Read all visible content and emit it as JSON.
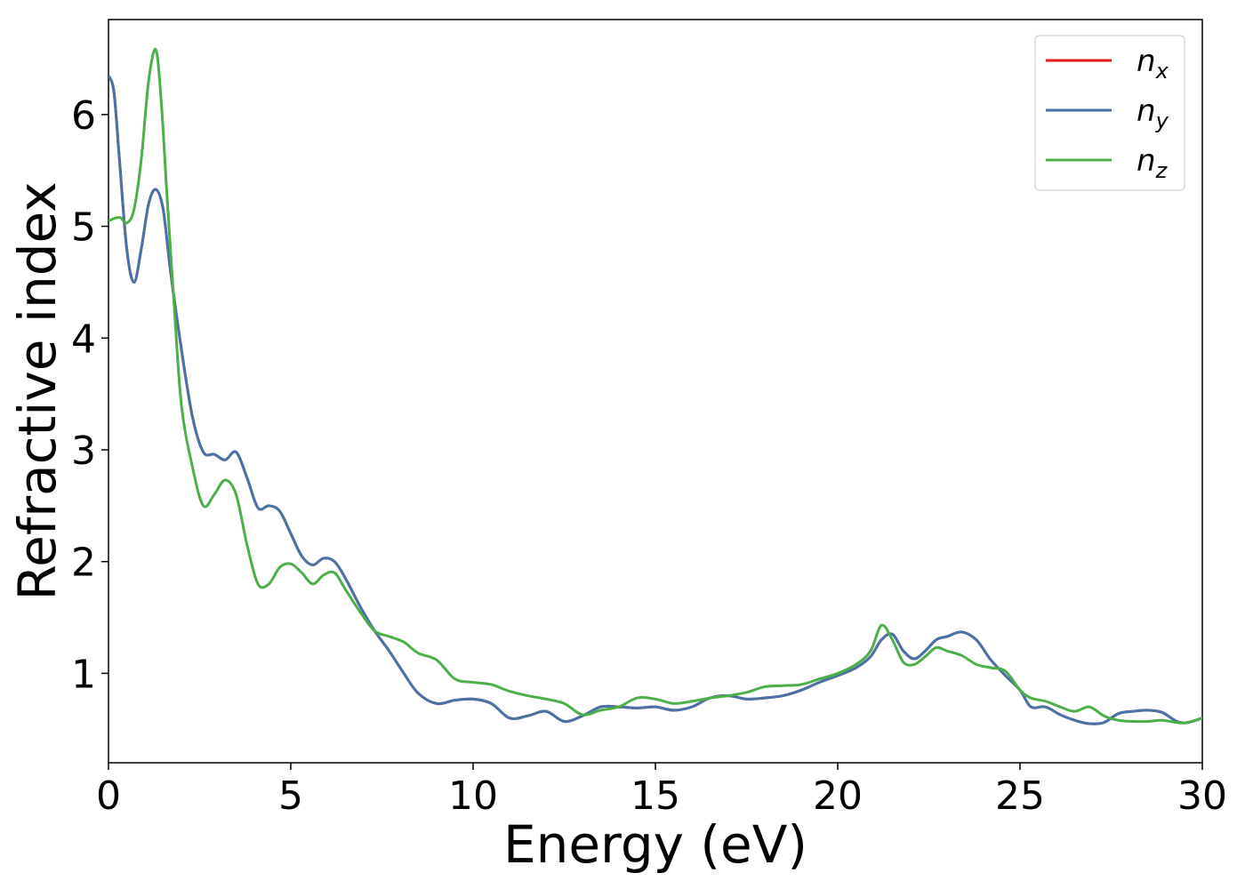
{
  "chart_data": {
    "type": "line",
    "title": "",
    "xlabel": "Energy (eV)",
    "ylabel": "Refractive index",
    "xlim": [
      0,
      30
    ],
    "ylim": [
      0.2,
      6.85
    ],
    "xticks": [
      0,
      5,
      10,
      15,
      20,
      25,
      30
    ],
    "yticks": [
      1,
      2,
      3,
      4,
      5,
      6
    ],
    "grid": false,
    "legend_position": "top-right",
    "series": [
      {
        "name": "n",
        "subscript": "x",
        "color": "#e41a1c",
        "x": [
          0,
          0.15,
          0.3,
          0.5,
          0.7,
          0.9,
          1.1,
          1.3,
          1.5,
          1.7,
          2.0,
          2.3,
          2.6,
          2.9,
          3.2,
          3.5,
          3.8,
          4.1,
          4.4,
          4.7,
          5.0,
          5.3,
          5.6,
          5.9,
          6.2,
          6.5,
          6.9,
          7.3,
          7.7,
          8.1,
          8.5,
          9.0,
          9.5,
          10.0,
          10.5,
          11.0,
          11.5,
          12.0,
          12.5,
          13.0,
          13.5,
          14.0,
          14.5,
          15.0,
          15.5,
          16.0,
          16.5,
          17.0,
          17.5,
          18.0,
          18.5,
          19.0,
          19.5,
          20.0,
          20.5,
          20.9,
          21.2,
          21.5,
          21.8,
          22.1,
          22.4,
          22.7,
          23.0,
          23.4,
          23.8,
          24.2,
          24.6,
          25.0,
          25.3,
          25.7,
          26.1,
          26.5,
          26.9,
          27.3,
          27.7,
          28.1,
          28.5,
          28.9,
          29.3,
          29.6,
          30.0
        ],
        "y": [
          6.35,
          6.2,
          5.6,
          4.8,
          4.5,
          4.8,
          5.2,
          5.33,
          5.15,
          4.6,
          3.9,
          3.3,
          2.98,
          2.96,
          2.91,
          2.98,
          2.75,
          2.48,
          2.5,
          2.45,
          2.25,
          2.05,
          1.97,
          2.03,
          2.0,
          1.85,
          1.6,
          1.38,
          1.2,
          1.0,
          0.82,
          0.73,
          0.76,
          0.77,
          0.73,
          0.6,
          0.62,
          0.66,
          0.57,
          0.62,
          0.7,
          0.7,
          0.69,
          0.7,
          0.67,
          0.7,
          0.78,
          0.8,
          0.77,
          0.78,
          0.8,
          0.85,
          0.92,
          0.98,
          1.05,
          1.15,
          1.3,
          1.35,
          1.2,
          1.13,
          1.2,
          1.3,
          1.33,
          1.37,
          1.3,
          1.12,
          0.98,
          0.85,
          0.7,
          0.7,
          0.63,
          0.58,
          0.55,
          0.56,
          0.64,
          0.66,
          0.67,
          0.65,
          0.57,
          0.56,
          0.6
        ]
      },
      {
        "name": "n",
        "subscript": "y",
        "color": "#4674a6",
        "x": [
          0,
          0.15,
          0.3,
          0.5,
          0.7,
          0.9,
          1.1,
          1.3,
          1.5,
          1.7,
          2.0,
          2.3,
          2.6,
          2.9,
          3.2,
          3.5,
          3.8,
          4.1,
          4.4,
          4.7,
          5.0,
          5.3,
          5.6,
          5.9,
          6.2,
          6.5,
          6.9,
          7.3,
          7.7,
          8.1,
          8.5,
          9.0,
          9.5,
          10.0,
          10.5,
          11.0,
          11.5,
          12.0,
          12.5,
          13.0,
          13.5,
          14.0,
          14.5,
          15.0,
          15.5,
          16.0,
          16.5,
          17.0,
          17.5,
          18.0,
          18.5,
          19.0,
          19.5,
          20.0,
          20.5,
          20.9,
          21.2,
          21.5,
          21.8,
          22.1,
          22.4,
          22.7,
          23.0,
          23.4,
          23.8,
          24.2,
          24.6,
          25.0,
          25.3,
          25.7,
          26.1,
          26.5,
          26.9,
          27.3,
          27.7,
          28.1,
          28.5,
          28.9,
          29.3,
          29.6,
          30.0
        ],
        "y": [
          6.35,
          6.2,
          5.6,
          4.8,
          4.5,
          4.8,
          5.2,
          5.33,
          5.15,
          4.6,
          3.9,
          3.3,
          2.98,
          2.96,
          2.91,
          2.98,
          2.75,
          2.48,
          2.5,
          2.45,
          2.25,
          2.05,
          1.97,
          2.03,
          2.0,
          1.85,
          1.6,
          1.38,
          1.2,
          1.0,
          0.82,
          0.73,
          0.76,
          0.77,
          0.73,
          0.6,
          0.62,
          0.66,
          0.57,
          0.62,
          0.7,
          0.7,
          0.69,
          0.7,
          0.67,
          0.7,
          0.78,
          0.8,
          0.77,
          0.78,
          0.8,
          0.85,
          0.92,
          0.98,
          1.05,
          1.15,
          1.3,
          1.35,
          1.2,
          1.13,
          1.2,
          1.3,
          1.33,
          1.37,
          1.3,
          1.12,
          0.98,
          0.85,
          0.7,
          0.7,
          0.63,
          0.58,
          0.55,
          0.56,
          0.64,
          0.66,
          0.67,
          0.65,
          0.57,
          0.56,
          0.6
        ]
      },
      {
        "name": "n",
        "subscript": "z",
        "color": "#4daf4a",
        "x": [
          0,
          0.3,
          0.5,
          0.7,
          0.9,
          1.1,
          1.3,
          1.45,
          1.6,
          1.8,
          2.0,
          2.3,
          2.6,
          2.9,
          3.2,
          3.5,
          3.8,
          4.1,
          4.4,
          4.7,
          5.0,
          5.3,
          5.6,
          5.9,
          6.2,
          6.5,
          6.9,
          7.3,
          7.7,
          8.1,
          8.5,
          9.0,
          9.5,
          10.0,
          10.5,
          11.0,
          11.5,
          12.0,
          12.5,
          13.0,
          13.5,
          14.0,
          14.5,
          15.0,
          15.5,
          16.0,
          16.5,
          17.0,
          17.5,
          18.0,
          18.5,
          19.0,
          19.5,
          20.0,
          20.5,
          20.9,
          21.2,
          21.5,
          21.8,
          22.1,
          22.4,
          22.7,
          23.0,
          23.4,
          23.8,
          24.2,
          24.6,
          25.0,
          25.3,
          25.7,
          26.1,
          26.5,
          26.9,
          27.3,
          27.7,
          28.1,
          28.5,
          28.9,
          29.3,
          29.6,
          30.0
        ],
        "y": [
          5.05,
          5.08,
          5.03,
          5.15,
          5.6,
          6.3,
          6.58,
          6.1,
          5.3,
          4.3,
          3.4,
          2.85,
          2.5,
          2.6,
          2.73,
          2.6,
          2.15,
          1.8,
          1.8,
          1.95,
          1.98,
          1.9,
          1.8,
          1.88,
          1.9,
          1.75,
          1.55,
          1.38,
          1.33,
          1.28,
          1.18,
          1.12,
          0.95,
          0.92,
          0.9,
          0.84,
          0.8,
          0.77,
          0.73,
          0.63,
          0.67,
          0.7,
          0.78,
          0.77,
          0.73,
          0.75,
          0.78,
          0.8,
          0.83,
          0.88,
          0.89,
          0.9,
          0.95,
          1.0,
          1.08,
          1.2,
          1.43,
          1.3,
          1.1,
          1.08,
          1.15,
          1.23,
          1.2,
          1.16,
          1.08,
          1.05,
          1.02,
          0.85,
          0.78,
          0.75,
          0.7,
          0.66,
          0.7,
          0.62,
          0.58,
          0.57,
          0.57,
          0.58,
          0.56,
          0.56,
          0.6
        ]
      }
    ]
  }
}
